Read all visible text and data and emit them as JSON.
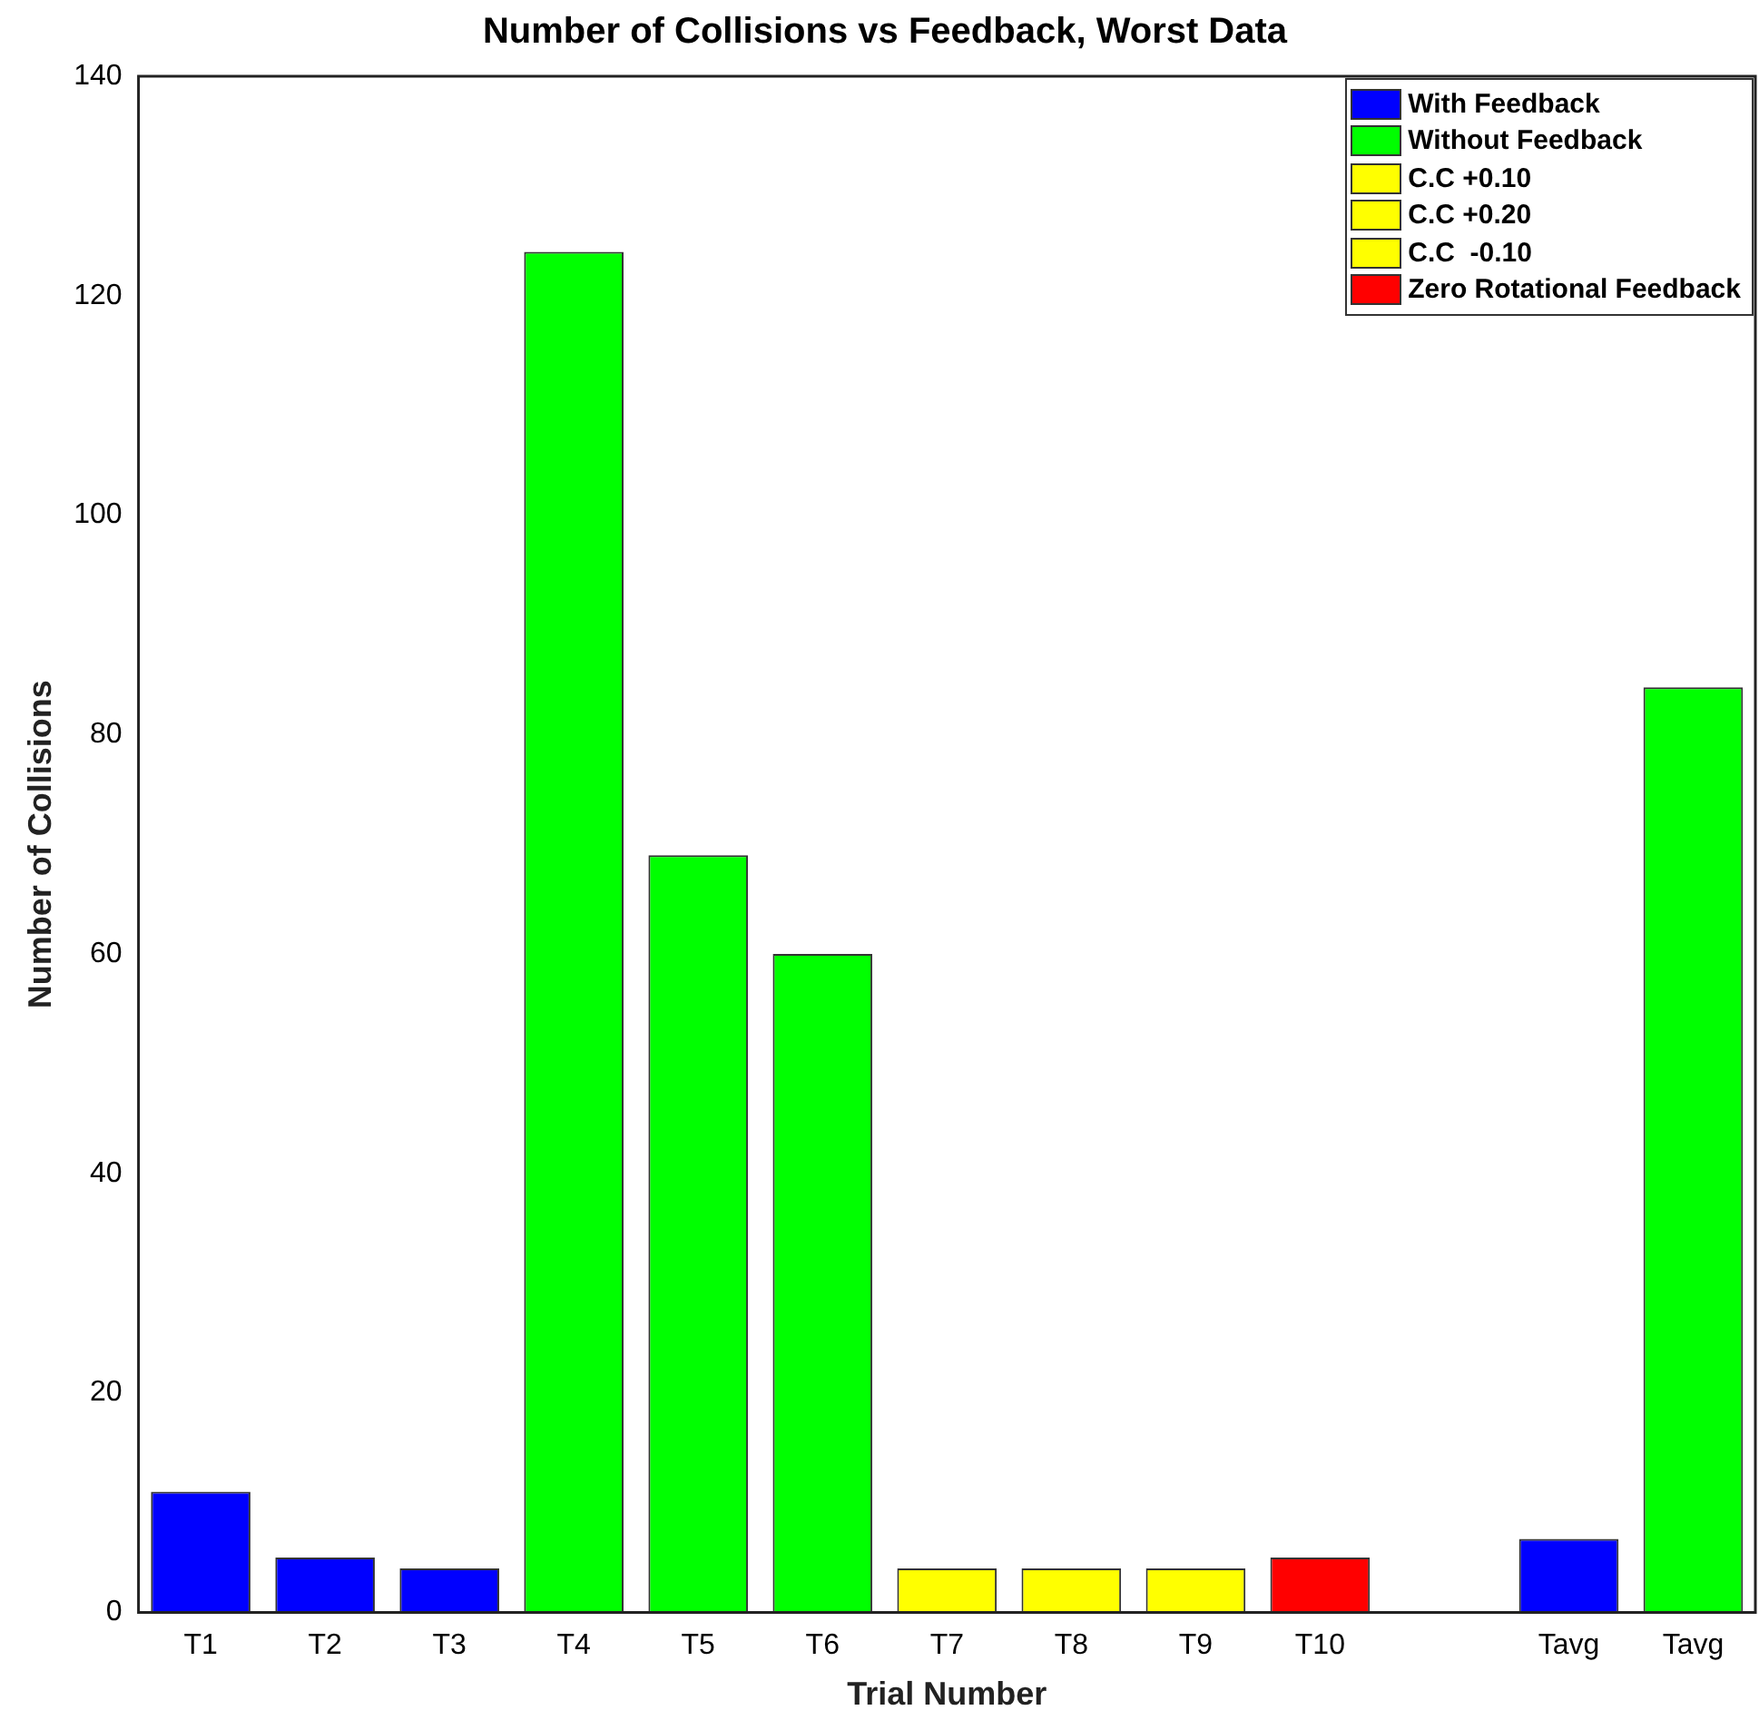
{
  "chart_data": {
    "type": "bar",
    "title": "Number of Collisions vs Feedback, Worst Data",
    "xlabel": "Trial Number",
    "ylabel": "Number of Collisions",
    "categories": [
      "T1",
      "T2",
      "T3",
      "T4",
      "T5",
      "T6",
      "T7",
      "T8",
      "T9",
      "T10",
      null,
      "Tavg",
      "Tavg"
    ],
    "stacked": true,
    "ylim": [
      0,
      140
    ],
    "yticks": [
      0,
      20,
      40,
      60,
      80,
      100,
      120,
      140
    ],
    "legend": "top right",
    "series": [
      {
        "name": "With Feedback",
        "color": "#0000ff",
        "values": [
          11,
          5,
          4,
          null,
          null,
          null,
          null,
          null,
          null,
          null,
          null,
          6.7,
          null
        ]
      },
      {
        "name": "Without Feedback",
        "color": "#00ff00",
        "values": [
          null,
          null,
          null,
          124,
          69,
          60,
          null,
          null,
          null,
          null,
          null,
          null,
          84.3
        ]
      },
      {
        "name": "C.C +0.10",
        "color": "#ffff00",
        "values": [
          null,
          null,
          null,
          null,
          null,
          null,
          4,
          null,
          null,
          null,
          null,
          null,
          null
        ]
      },
      {
        "name": "C.C +0.20",
        "color": "#ffff00",
        "values": [
          null,
          null,
          null,
          null,
          null,
          null,
          null,
          4,
          null,
          null,
          null,
          null,
          null
        ]
      },
      {
        "name": "C.C  -0.10",
        "color": "#ffff00",
        "values": [
          null,
          null,
          null,
          null,
          null,
          null,
          null,
          null,
          4,
          null,
          null,
          null,
          null
        ]
      },
      {
        "name": "Zero Rotational Feedback",
        "color": "#ff0000",
        "values": [
          null,
          null,
          null,
          null,
          null,
          null,
          null,
          null,
          null,
          5,
          null,
          null,
          null
        ]
      }
    ]
  }
}
